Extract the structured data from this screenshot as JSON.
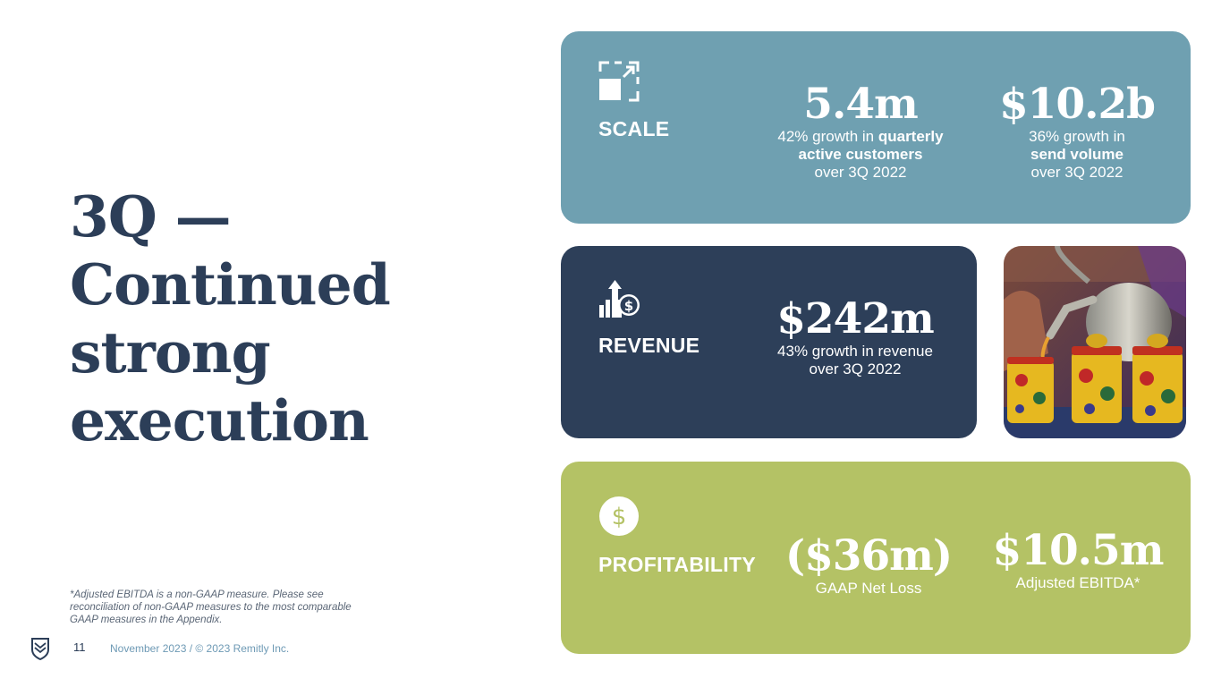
{
  "title_lines": [
    "3Q —",
    "Continued",
    "strong",
    "execution"
  ],
  "footnote": "*Adjusted EBITDA is a non-GAAP measure. Please see reconciliation of non-GAAP measures to the most comparable GAAP measures in the Appendix.",
  "footer": {
    "page_number": "11",
    "text": "November 2023 / © 2023 Remitly Inc.",
    "logo_icon": "remitly-shield-icon"
  },
  "colors": {
    "title": "#2c3e58",
    "scale_card": "#6fa0b1",
    "revenue_card": "#2d3f59",
    "profitability_card": "#b4c265",
    "footer_text": "#6e9ab5"
  },
  "scale": {
    "icon": "expand-icon",
    "label": "SCALE",
    "metrics": [
      {
        "value": "5.4m",
        "desc_pre": "42% growth in ",
        "desc_bold": "quarterly active customers",
        "desc_post": "over 3Q 2022"
      },
      {
        "value": "$10.2b",
        "desc_pre": "36% growth in",
        "desc_bold": "send volume",
        "desc_post": "over 3Q 2022"
      }
    ]
  },
  "revenue": {
    "icon": "revenue-growth-icon",
    "label": "REVENUE",
    "metric": {
      "value": "$242m",
      "desc_line1": "43% growth in revenue",
      "desc_line2": "over 3Q 2022"
    }
  },
  "photo": {
    "alt": "teapot-pouring-tea-photo"
  },
  "profitability": {
    "icon": "dollar-icon",
    "label": "PROFITABILITY",
    "metrics": [
      {
        "value": "($36m)",
        "desc": "GAAP Net Loss"
      },
      {
        "value": "$10.5m",
        "desc": "Adjusted EBITDA*"
      }
    ]
  }
}
